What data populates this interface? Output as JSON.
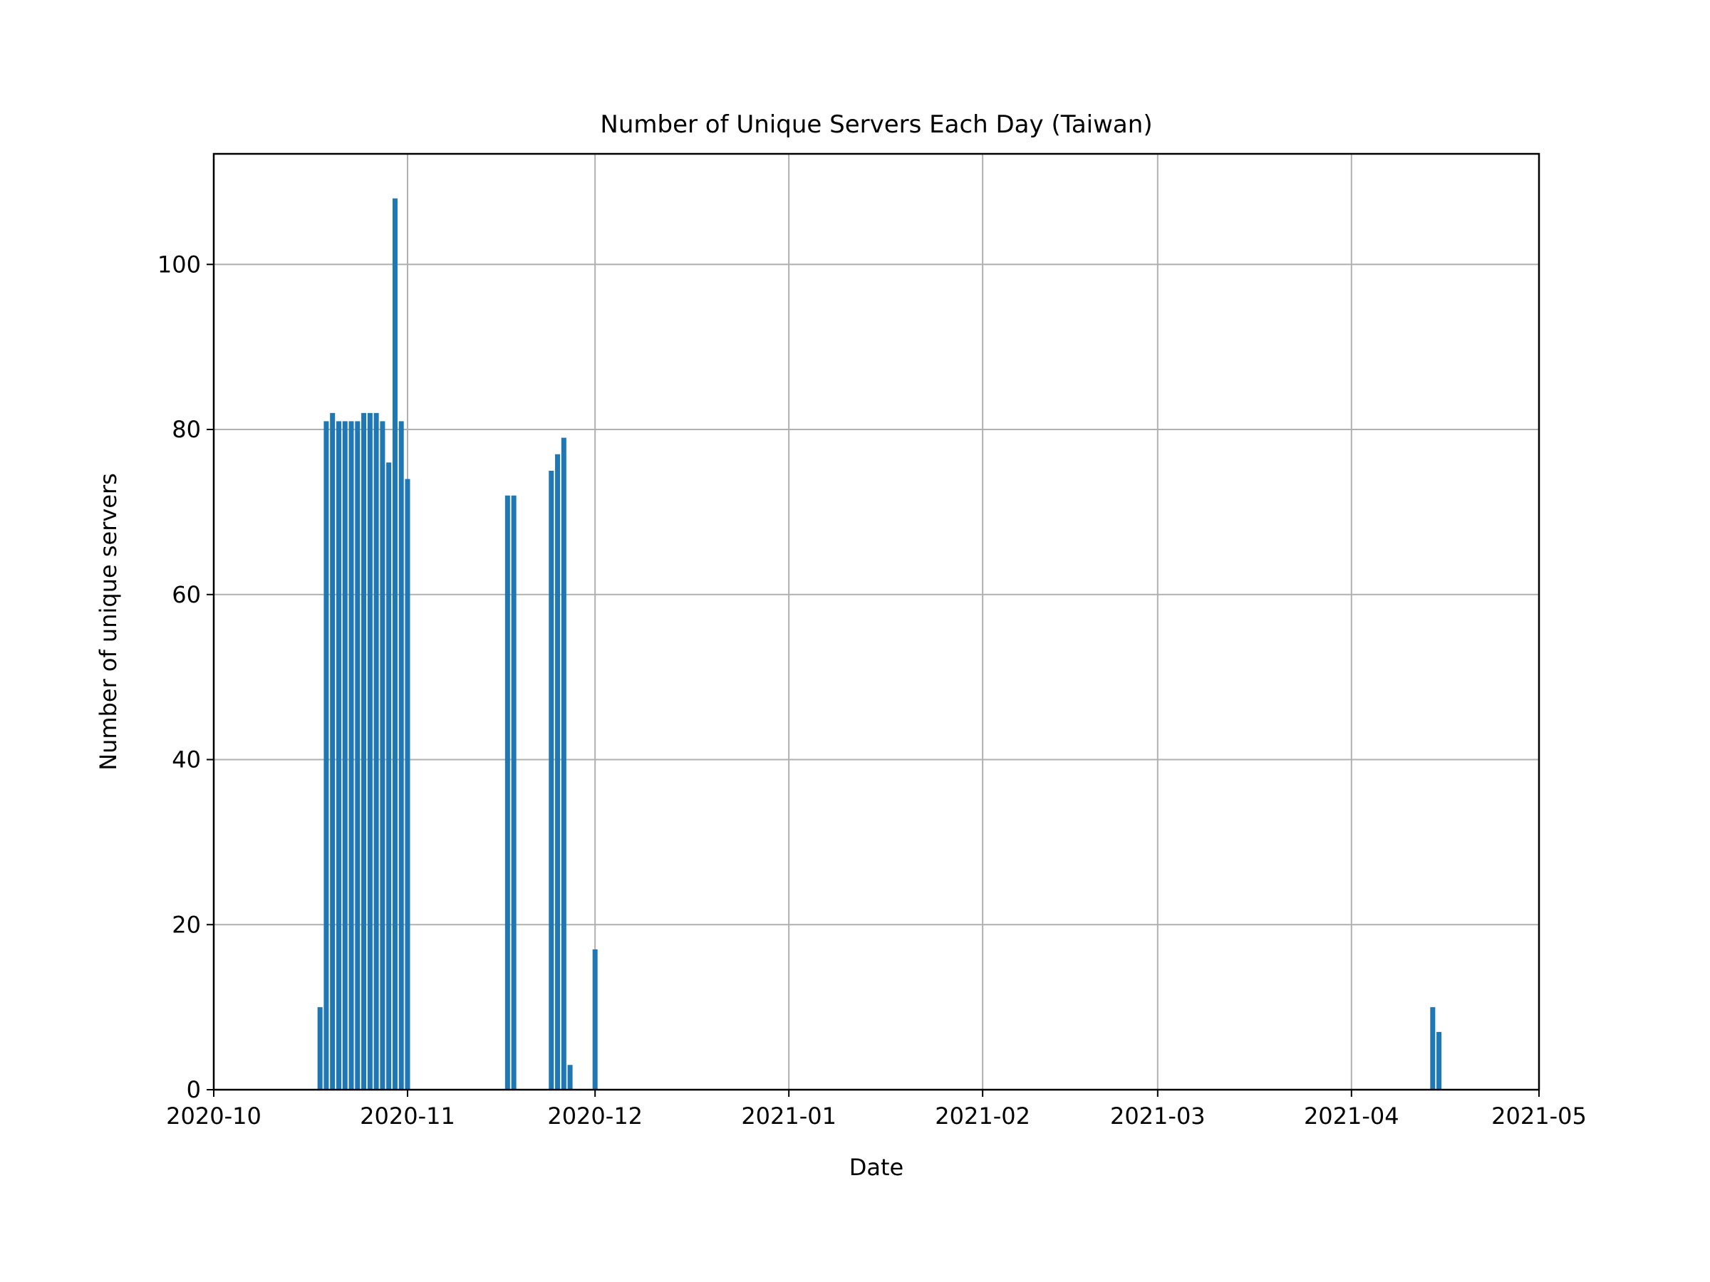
{
  "chart_data": {
    "type": "bar",
    "title": "Number of Unique Servers Each Day (Taiwan)",
    "xlabel": "Date",
    "ylabel": "Number of unique servers",
    "x_axis_type": "date",
    "xlim": [
      "2020-10-01",
      "2021-05-01"
    ],
    "ylim": [
      0,
      113.4
    ],
    "x_ticks": [
      "2020-10",
      "2020-11",
      "2020-12",
      "2021-01",
      "2021-02",
      "2021-03",
      "2021-04",
      "2021-05"
    ],
    "y_ticks": [
      "0",
      "20",
      "40",
      "60",
      "80",
      "100"
    ],
    "grid": true,
    "series": [
      {
        "color": "#1f77b4",
        "points": [
          {
            "x": "2020-10-18",
            "y": 10
          },
          {
            "x": "2020-10-19",
            "y": 81
          },
          {
            "x": "2020-10-20",
            "y": 82
          },
          {
            "x": "2020-10-21",
            "y": 81
          },
          {
            "x": "2020-10-22",
            "y": 81
          },
          {
            "x": "2020-10-23",
            "y": 81
          },
          {
            "x": "2020-10-24",
            "y": 81
          },
          {
            "x": "2020-10-25",
            "y": 82
          },
          {
            "x": "2020-10-26",
            "y": 82
          },
          {
            "x": "2020-10-27",
            "y": 82
          },
          {
            "x": "2020-10-28",
            "y": 81
          },
          {
            "x": "2020-10-29",
            "y": 76
          },
          {
            "x": "2020-10-30",
            "y": 108
          },
          {
            "x": "2020-10-31",
            "y": 81
          },
          {
            "x": "2020-11-01",
            "y": 74
          },
          {
            "x": "2020-11-17",
            "y": 72
          },
          {
            "x": "2020-11-18",
            "y": 72
          },
          {
            "x": "2020-11-24",
            "y": 75
          },
          {
            "x": "2020-11-25",
            "y": 77
          },
          {
            "x": "2020-11-26",
            "y": 79
          },
          {
            "x": "2020-11-27",
            "y": 3
          },
          {
            "x": "2020-12-01",
            "y": 17
          },
          {
            "x": "2021-04-14",
            "y": 10
          },
          {
            "x": "2021-04-15",
            "y": 7
          }
        ]
      }
    ]
  }
}
